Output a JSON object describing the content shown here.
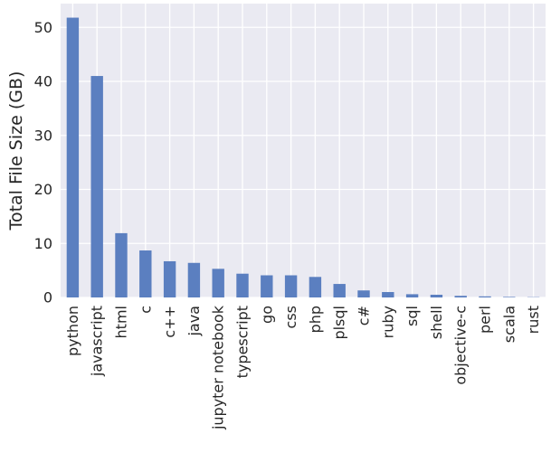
{
  "chart_data": {
    "type": "bar",
    "title": "",
    "xlabel": "",
    "ylabel": "Total File Size (GB)",
    "categories": [
      "python",
      "javascript",
      "html",
      "c",
      "c++",
      "java",
      "jupyter notebook",
      "typescript",
      "go",
      "css",
      "php",
      "plsql",
      "c#",
      "ruby",
      "sql",
      "shell",
      "objective-c",
      "perl",
      "scala",
      "rust"
    ],
    "values": [
      51.8,
      41.0,
      11.9,
      8.7,
      6.7,
      6.4,
      5.3,
      4.4,
      4.1,
      4.1,
      3.8,
      2.5,
      1.3,
      1.0,
      0.6,
      0.5,
      0.3,
      0.2,
      0.1,
      0.05
    ],
    "yticks": [
      0,
      10,
      20,
      30,
      40,
      50
    ],
    "ylim": [
      0,
      54.4
    ],
    "grid": true,
    "colors": {
      "bar": "#5b7fc0",
      "background": "#eaeaf2",
      "grid": "#ffffff",
      "text": "#262626"
    }
  }
}
